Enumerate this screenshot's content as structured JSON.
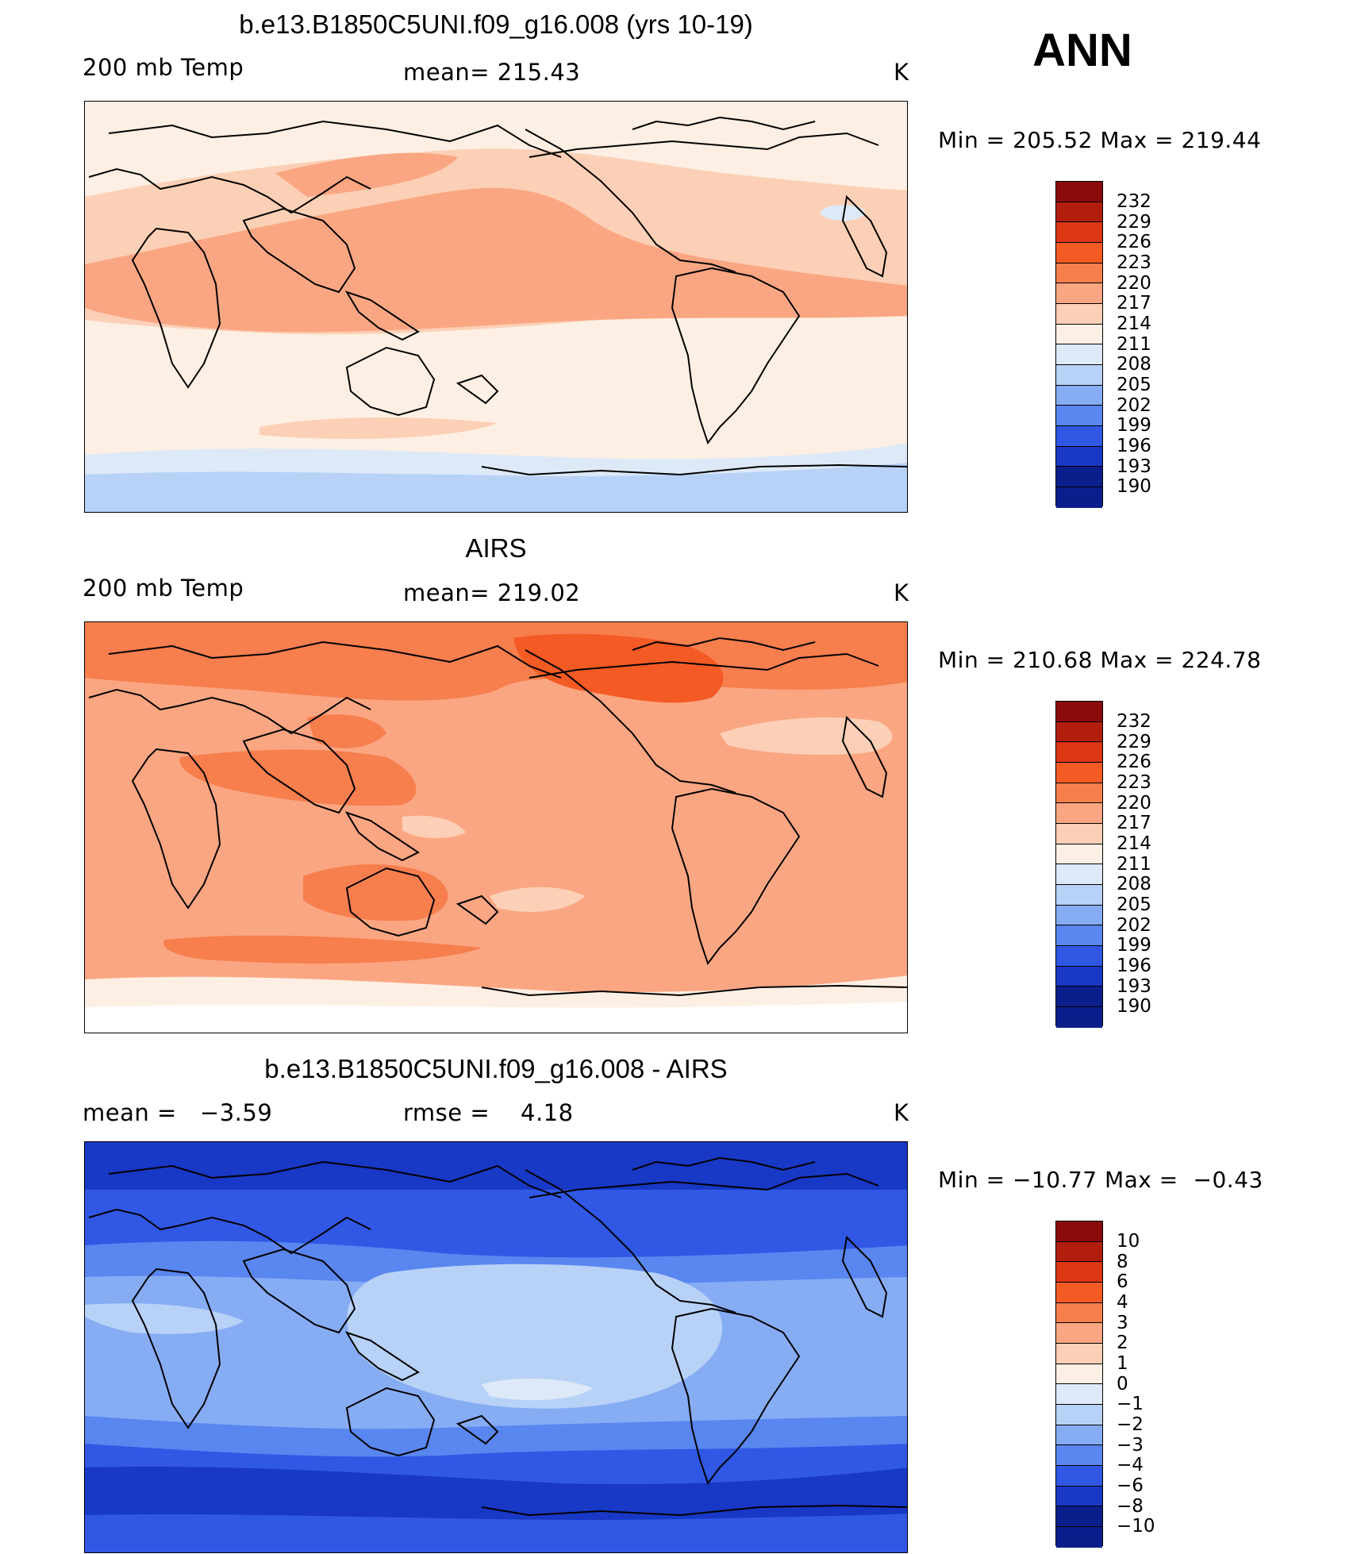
{
  "annotation": "ANN",
  "panels": [
    {
      "title": "b.e13.B1850C5UNI.f09_g16.008 (yrs 10-19)",
      "left_label": "200 mb Temp",
      "center_label": "mean= 215.43",
      "right_label": "K",
      "minmax": "Min = 205.52 Max = 219.44",
      "colorbar_labels": [
        "232",
        "229",
        "226",
        "223",
        "220",
        "217",
        "214",
        "211",
        "208",
        "205",
        "202",
        "199",
        "196",
        "193",
        "190"
      ]
    },
    {
      "title": "AIRS",
      "left_label": "200 mb Temp",
      "center_label": "mean= 219.02",
      "right_label": "K",
      "minmax": "Min = 210.68 Max = 224.78",
      "colorbar_labels": [
        "232",
        "229",
        "226",
        "223",
        "220",
        "217",
        "214",
        "211",
        "208",
        "205",
        "202",
        "199",
        "196",
        "193",
        "190"
      ]
    },
    {
      "title": "b.e13.B1850C5UNI.f09_g16.008 - AIRS",
      "left_label": "mean =   −3.59",
      "center_label": "rmse =    4.18",
      "right_label": "K",
      "minmax": "Min = −10.77 Max =  −0.43",
      "colorbar_labels": [
        "10",
        "8",
        "6",
        "4",
        "3",
        "2",
        "1",
        "0",
        "−1",
        "−2",
        "−3",
        "−4",
        "−6",
        "−8",
        "−10"
      ]
    }
  ],
  "colorbar_colors": [
    "#8a0c0a",
    "#b21e0e",
    "#dc3612",
    "#f45a24",
    "#f77e4d",
    "#fba682",
    "#fcd0b6",
    "#fdefe3",
    "#dde9f7",
    "#b8d2f7",
    "#86acf4",
    "#5986ef",
    "#3058e5",
    "#1838c6",
    "#0a1e8c"
  ]
}
